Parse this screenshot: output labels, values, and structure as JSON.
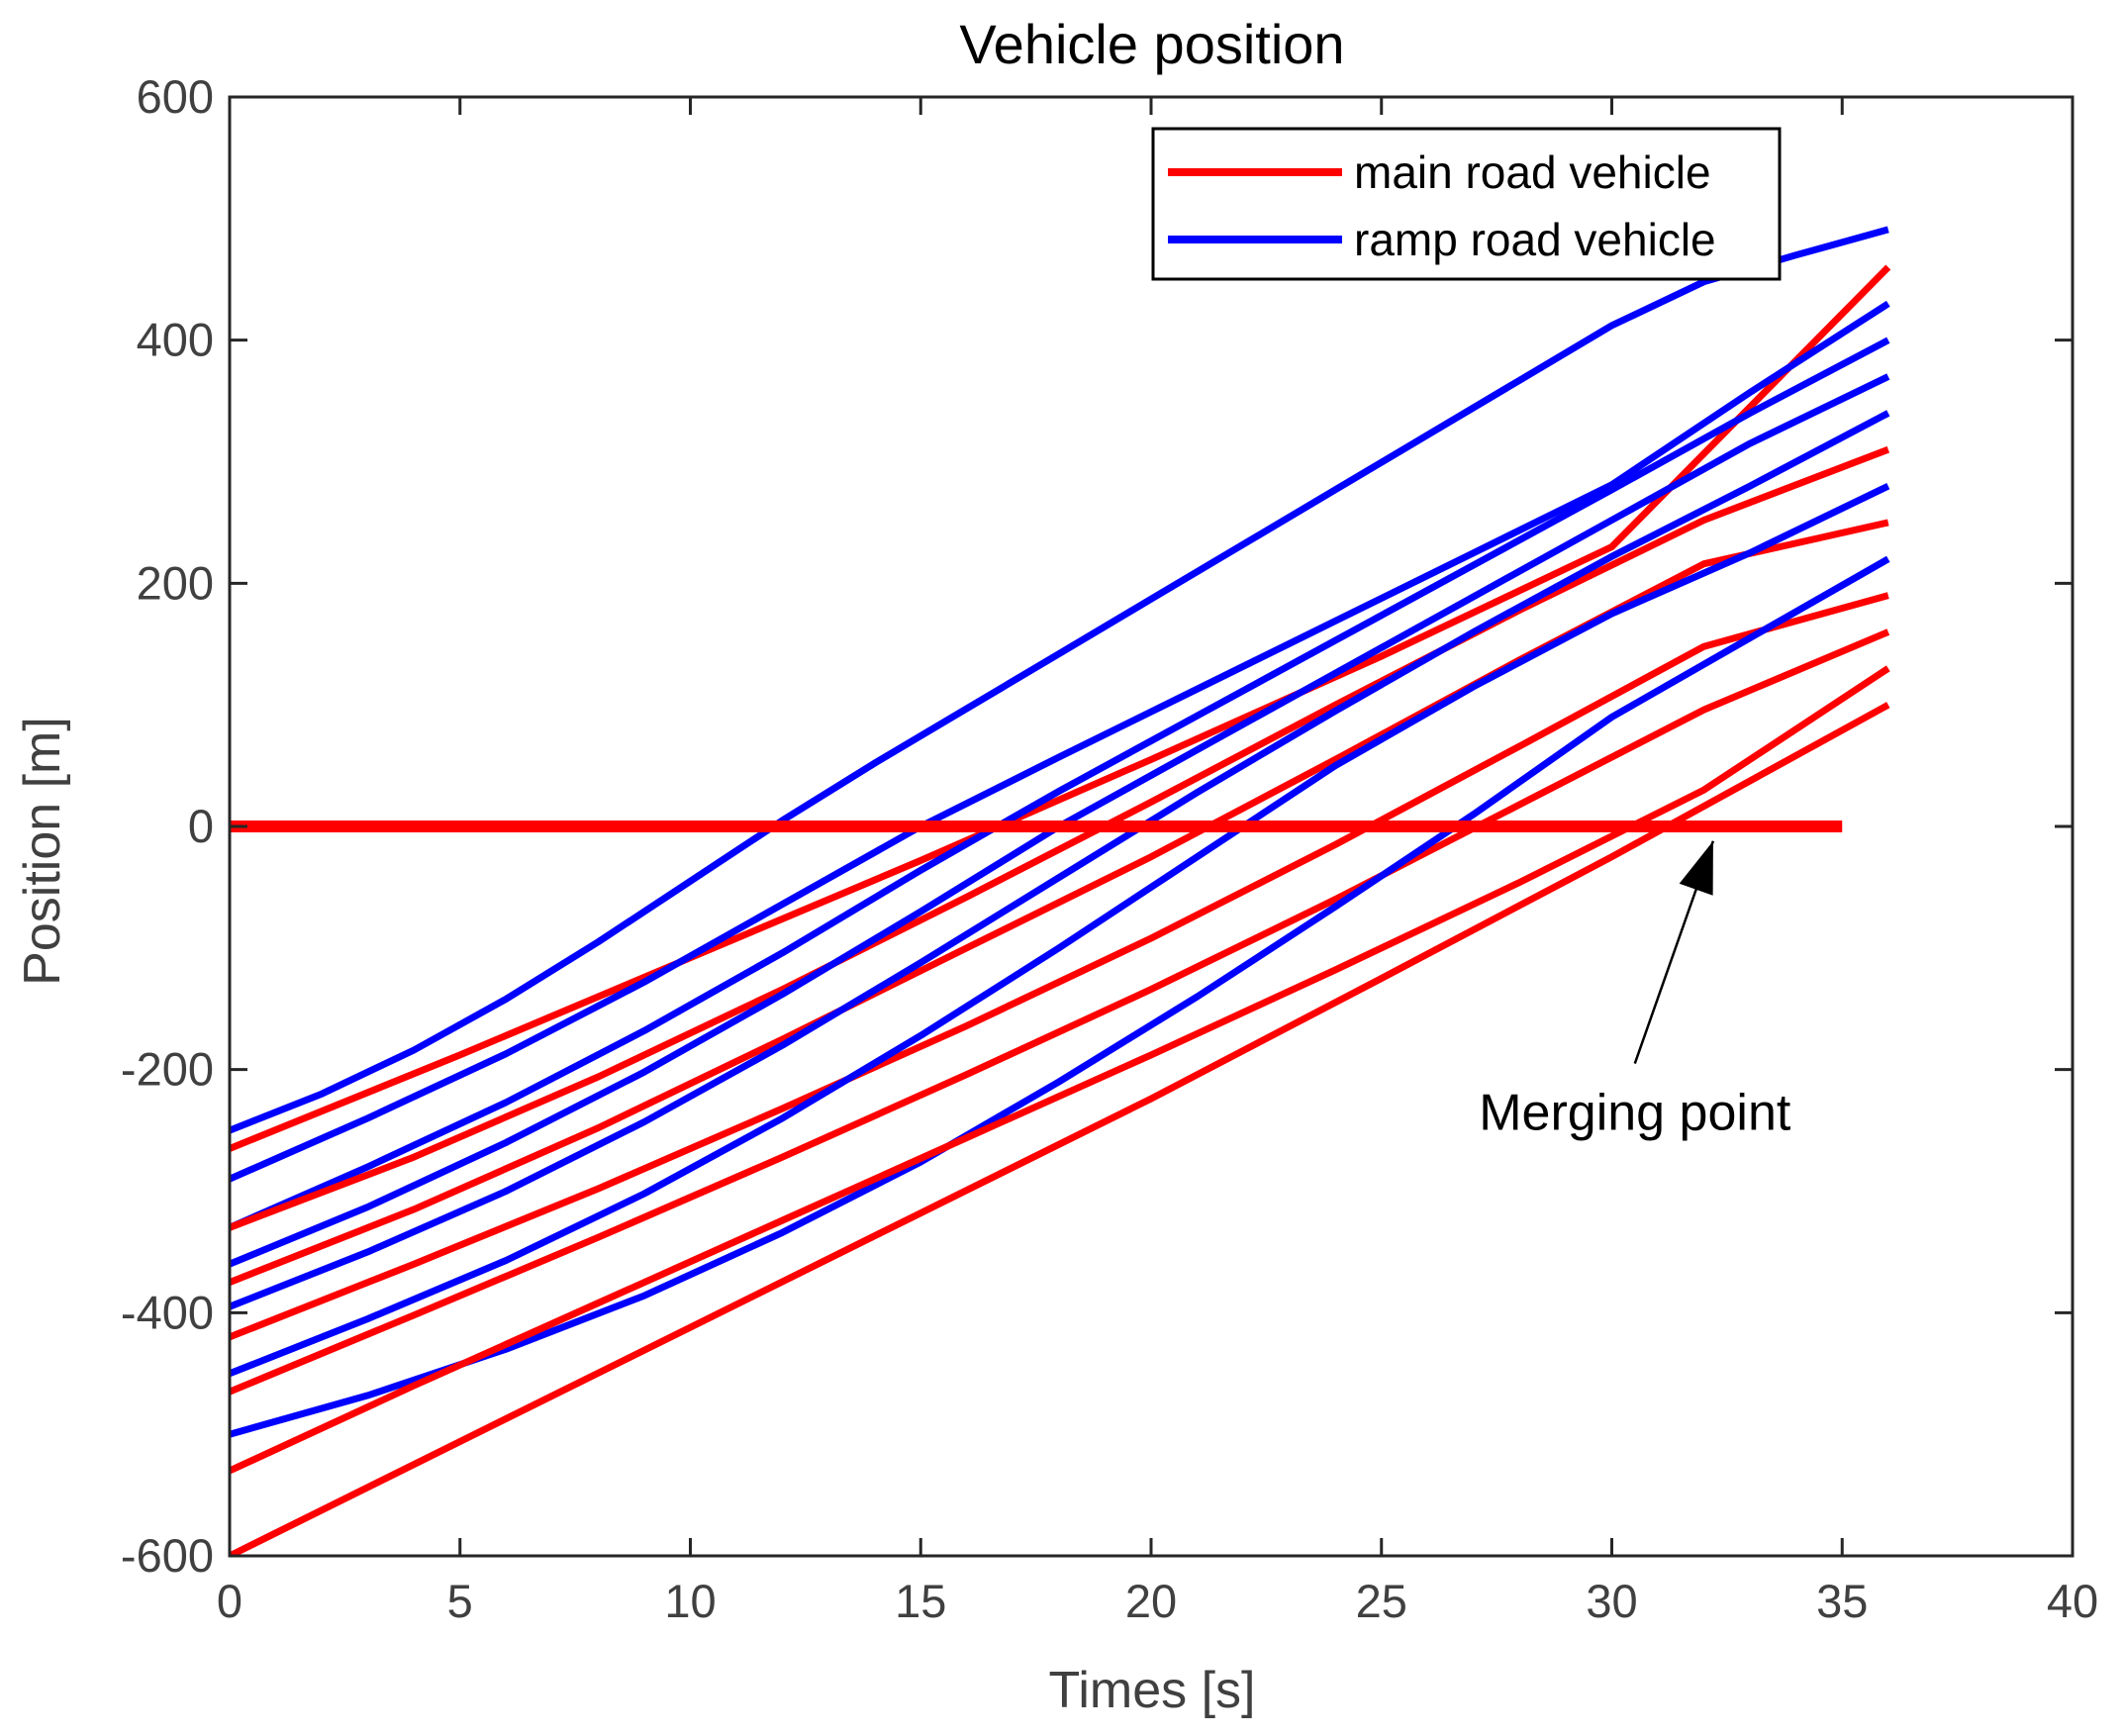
{
  "chart_data": {
    "type": "line",
    "title": "Vehicle position",
    "xlabel": "Times [s]",
    "ylabel": "Position [m]",
    "xlim": [
      0,
      40
    ],
    "ylim": [
      -600,
      600
    ],
    "xticks": [
      0,
      5,
      10,
      15,
      20,
      25,
      30,
      35,
      40
    ],
    "yticks": [
      -600,
      -400,
      -200,
      0,
      200,
      400,
      600
    ],
    "grid": false,
    "legend": {
      "placement": "top-right",
      "entries": [
        {
          "label": "main road vehicle",
          "color": "#ff0000"
        },
        {
          "label": "ramp road vehicle",
          "color": "#0000ff"
        }
      ]
    },
    "reference_line": {
      "name": "merging point line",
      "y": 0,
      "x": [
        0,
        35
      ],
      "color": "#ff0000"
    },
    "annotation": {
      "text": "Merging point",
      "x_text": 30.5,
      "y_text": -235,
      "arrow_from": [
        30.5,
        -195
      ],
      "arrow_to": [
        32.2,
        -12
      ]
    },
    "series": [
      {
        "name": "ramp road vehicle 1",
        "group": "ramp",
        "color": "#0000ff",
        "x": [
          0,
          2,
          4,
          6,
          8,
          10,
          12,
          14,
          16,
          18,
          20,
          22,
          24,
          26,
          28,
          30,
          32,
          34,
          36
        ],
        "y": [
          -250,
          -220,
          -184,
          -142,
          -95,
          -45,
          5,
          52,
          97,
          142,
          187,
          232,
          277,
          322,
          367,
          412,
          448,
          470,
          491
        ]
      },
      {
        "name": "main road vehicle 1",
        "group": "main",
        "color": "#ff0000",
        "x": [
          0,
          5,
          10,
          15,
          20,
          25,
          30,
          36
        ],
        "y": [
          -265,
          -188,
          -108,
          -28,
          55,
          140,
          230,
          460
        ]
      },
      {
        "name": "ramp road vehicle 2",
        "group": "ramp",
        "color": "#0000ff",
        "x": [
          0,
          3,
          6,
          9,
          12,
          15,
          18,
          21,
          24,
          27,
          30,
          33,
          36
        ],
        "y": [
          -290,
          -240,
          -187,
          -128,
          -64,
          0,
          57,
          113,
          169,
          225,
          281,
          357,
          430
        ]
      },
      {
        "name": "ramp road vehicle 3",
        "group": "ramp",
        "color": "#0000ff",
        "x": [
          0,
          3,
          6,
          9,
          12,
          15,
          18,
          21,
          24,
          27,
          30,
          33,
          36
        ],
        "y": [
          -330,
          -280,
          -227,
          -168,
          -104,
          -36,
          29,
          91,
          153,
          215,
          277,
          340,
          400
        ]
      },
      {
        "name": "main road vehicle 2",
        "group": "main",
        "color": "#ff0000",
        "x": [
          0,
          4,
          8,
          12,
          16,
          20,
          24,
          28,
          32,
          36
        ],
        "y": [
          -330,
          -272,
          -206,
          -134,
          -58,
          20,
          100,
          178,
          252,
          310
        ]
      },
      {
        "name": "ramp road vehicle 4",
        "group": "ramp",
        "color": "#0000ff",
        "x": [
          0,
          3,
          6,
          9,
          12,
          15,
          18,
          21,
          24,
          27,
          30,
          33,
          36
        ],
        "y": [
          -360,
          -313,
          -260,
          -202,
          -138,
          -70,
          0,
          63,
          126,
          189,
          252,
          315,
          370
        ]
      },
      {
        "name": "main road vehicle 3",
        "group": "main",
        "color": "#ff0000",
        "x": [
          0,
          4,
          8,
          12,
          16,
          20,
          24,
          28,
          32,
          36
        ],
        "y": [
          -375,
          -315,
          -248,
          -175,
          -100,
          -25,
          55,
          137,
          216,
          250
        ]
      },
      {
        "name": "ramp road vehicle 5",
        "group": "ramp",
        "color": "#0000ff",
        "x": [
          0,
          3,
          6,
          9,
          12,
          15,
          18,
          21,
          24,
          27,
          30,
          33,
          36
        ],
        "y": [
          -395,
          -350,
          -300,
          -243,
          -180,
          -112,
          -42,
          28,
          95,
          160,
          222,
          280,
          340
        ]
      },
      {
        "name": "main road vehicle 4",
        "group": "main",
        "color": "#ff0000",
        "x": [
          0,
          4,
          8,
          12,
          16,
          20,
          24,
          28,
          32,
          36
        ],
        "y": [
          -420,
          -360,
          -298,
          -232,
          -164,
          -92,
          -15,
          66,
          148,
          190
        ]
      },
      {
        "name": "ramp road vehicle 6",
        "group": "ramp",
        "color": "#0000ff",
        "x": [
          0,
          3,
          6,
          9,
          12,
          15,
          18,
          21,
          24,
          27,
          30,
          33,
          36
        ],
        "y": [
          -450,
          -405,
          -357,
          -302,
          -240,
          -172,
          -100,
          -25,
          50,
          115,
          175,
          225,
          280
        ]
      },
      {
        "name": "main road vehicle 5",
        "group": "main",
        "color": "#ff0000",
        "x": [
          0,
          4,
          8,
          12,
          16,
          20,
          24,
          28,
          32,
          36
        ],
        "y": [
          -465,
          -402,
          -338,
          -272,
          -204,
          -134,
          -60,
          18,
          96,
          160
        ]
      },
      {
        "name": "ramp road vehicle 7",
        "group": "ramp",
        "color": "#0000ff",
        "x": [
          0,
          3,
          6,
          9,
          12,
          15,
          18,
          21,
          24,
          27,
          30,
          33,
          36
        ],
        "y": [
          -500,
          -468,
          -430,
          -386,
          -334,
          -276,
          -210,
          -140,
          -66,
          10,
          90,
          155,
          220
        ]
      },
      {
        "name": "main road vehicle 6",
        "group": "main",
        "color": "#ff0000",
        "x": [
          0,
          4,
          8,
          12,
          16,
          20,
          24,
          28,
          32,
          36
        ],
        "y": [
          -530,
          -460,
          -392,
          -324,
          -256,
          -188,
          -118,
          -46,
          30,
          130
        ]
      },
      {
        "name": "main road vehicle 7",
        "group": "main",
        "color": "#ff0000",
        "x": [
          0,
          5,
          10,
          15,
          20,
          25,
          30,
          36
        ],
        "y": [
          -600,
          -506,
          -412,
          -318,
          -224,
          -125,
          -25,
          100
        ]
      }
    ]
  }
}
